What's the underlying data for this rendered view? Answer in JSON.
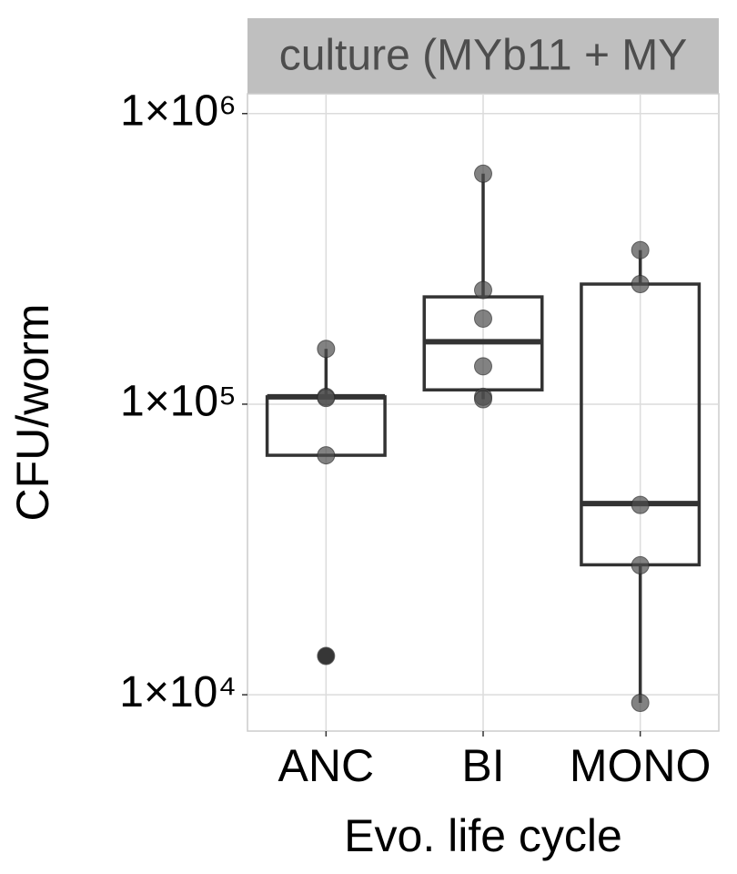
{
  "chart_data": {
    "type": "box",
    "strip_title": "culture (MYb11 + MY",
    "x_label": "Evo. life cycle",
    "y_label": "CFU/worm",
    "categories": [
      "ANC",
      "BI",
      "MONO"
    ],
    "log_y": true,
    "grid": true,
    "ylim": [
      7500,
      1170000
    ],
    "yticks": [
      {
        "value": 10000,
        "label": "1×10⁴"
      },
      {
        "value": 100000,
        "label": "1×10⁵"
      },
      {
        "value": 1000000,
        "label": "1×10⁶"
      }
    ],
    "box_color": "#333333",
    "point_color": "#4d4d4d",
    "boxes": [
      {
        "whisker_low": 66700,
        "q1": 66700,
        "median": 106000,
        "q3": 106000,
        "whisker_high": 155000,
        "points": [
          155000,
          106000,
          105000,
          66700,
          13600
        ],
        "outliers": [
          13600
        ]
      },
      {
        "whisker_low": 104000,
        "q1": 112000,
        "median": 164000,
        "q3": 234000,
        "whisker_high": 621000,
        "points": [
          621000,
          247000,
          197000,
          135000,
          106000,
          104000
        ],
        "outliers": []
      },
      {
        "whisker_low": 9380,
        "q1": 28000,
        "median": 45500,
        "q3": 259000,
        "whisker_high": 339000,
        "points": [
          339000,
          259000,
          45000,
          27900,
          9380
        ],
        "outliers": []
      }
    ]
  }
}
